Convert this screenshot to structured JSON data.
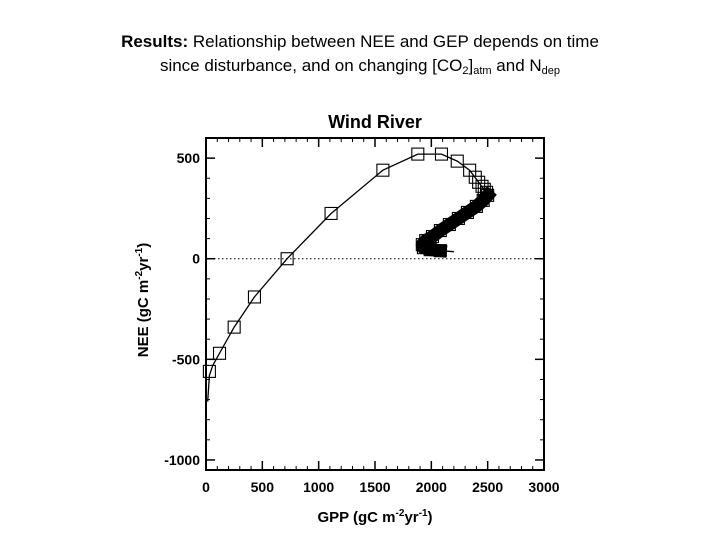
{
  "slide": {
    "title_bold": "Results:",
    "title_line1": " Relationship between NEE and GEP depends on time",
    "title_line2_a": "since disturbance, and on changing [CO",
    "title_sub_2": "2",
    "title_bracket": "]",
    "title_sub_atm": "atm",
    "title_line2_b": " and N",
    "title_sub_dep": "dep"
  },
  "chart_data": {
    "type": "scatter",
    "title": "Wind River",
    "xlabel": "GPP (gC m",
    "xlabel_sup": "-2",
    "xlabel_end": "yr",
    "xlabel_sup2": "-1",
    "xlabel_close": ")",
    "ylabel": "NEE (gC m",
    "ylabel_sup": "-2",
    "ylabel_end": "yr",
    "ylabel_sup2": "-1",
    "ylabel_close": ")",
    "xlim": [
      0,
      3000
    ],
    "ylim": [
      -1050,
      600
    ],
    "x_ticks": [
      0,
      500,
      1000,
      1500,
      2000,
      2500,
      3000
    ],
    "x_tick_labels": [
      "0",
      "500",
      "1000",
      "1500",
      "2000",
      "2500",
      "3000"
    ],
    "y_ticks": [
      -1000,
      -500,
      0,
      500
    ],
    "y_tick_labels": [
      "-1000",
      "-500",
      "0",
      "500"
    ],
    "zero_reference_line": {
      "y": 0,
      "style": "dotted"
    },
    "series": [
      {
        "marker": "square",
        "points": [
          [
            30,
            -560
          ],
          [
            120,
            -470
          ],
          [
            250,
            -340
          ],
          [
            430,
            -190
          ],
          [
            720,
            0
          ],
          [
            1110,
            225
          ],
          [
            1570,
            440
          ],
          [
            1880,
            520
          ],
          [
            2090,
            520
          ],
          [
            2230,
            485
          ],
          [
            2340,
            440
          ],
          [
            2390,
            405
          ],
          [
            2420,
            380
          ],
          [
            2450,
            360
          ],
          [
            2470,
            345
          ],
          [
            2490,
            330
          ],
          [
            2500,
            315
          ],
          [
            2460,
            290
          ],
          [
            2400,
            260
          ],
          [
            2320,
            230
          ],
          [
            2240,
            200
          ],
          [
            2160,
            170
          ],
          [
            2080,
            140
          ],
          [
            2010,
            110
          ],
          [
            1950,
            90
          ],
          [
            1920,
            70
          ],
          [
            1930,
            55
          ],
          [
            1990,
            45
          ],
          [
            2080,
            40
          ]
        ]
      }
    ],
    "curve": [
      [
        15,
        -710
      ],
      [
        30,
        -580
      ],
      [
        60,
        -530
      ],
      [
        120,
        -470
      ],
      [
        250,
        -340
      ],
      [
        430,
        -190
      ],
      [
        720,
        0
      ],
      [
        1110,
        225
      ],
      [
        1570,
        440
      ],
      [
        1880,
        520
      ],
      [
        2090,
        520
      ],
      [
        2230,
        485
      ],
      [
        2340,
        440
      ],
      [
        2420,
        380
      ],
      [
        2480,
        335
      ],
      [
        2500,
        315
      ],
      [
        2460,
        290
      ],
      [
        2320,
        230
      ],
      [
        2160,
        170
      ],
      [
        2010,
        110
      ],
      [
        1920,
        70
      ],
      [
        1930,
        55
      ],
      [
        2080,
        40
      ],
      [
        2200,
        35
      ]
    ]
  }
}
